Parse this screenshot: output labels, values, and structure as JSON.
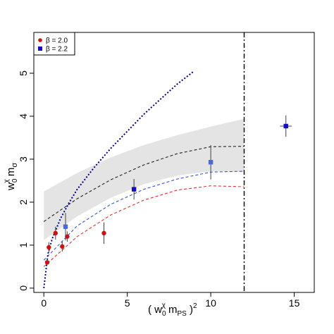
{
  "chart_data": {
    "type": "scatter",
    "xlim": [
      -0.6,
      16.2
    ],
    "ylim": [
      -0.1,
      5.95
    ],
    "x_ticks": [
      0,
      5,
      10,
      15
    ],
    "y_ticks": [
      0,
      1,
      2,
      3,
      4,
      5
    ],
    "grid": false,
    "legend_position": "top-left",
    "xlabel_parts": [
      "( w",
      "0",
      "χ",
      " m",
      "PS",
      " )",
      "2"
    ],
    "ylabel_parts": [
      "w",
      "0",
      "χ",
      " m",
      "σ"
    ],
    "series": [
      {
        "name": "β = 2.0",
        "marker": "circle",
        "color": "#cc1111",
        "points": [
          {
            "x": 0.2,
            "y": 0.6,
            "yerr": 0.05
          },
          {
            "x": 0.3,
            "y": 0.95,
            "yerr": 0.12
          },
          {
            "x": 0.7,
            "y": 1.28,
            "yerr": 0.15
          },
          {
            "x": 1.1,
            "y": 0.97,
            "yerr": 0.12
          },
          {
            "x": 1.4,
            "y": 1.2,
            "yerr": 0.12
          },
          {
            "x": 3.6,
            "y": 1.28,
            "yerr": 0.25
          }
        ]
      },
      {
        "name": "β = 2.2",
        "marker": "square",
        "color": "#1111bb",
        "points": [
          {
            "x": 1.3,
            "y": 1.43,
            "yerr": 0.32,
            "faded": true
          },
          {
            "x": 5.4,
            "y": 2.3,
            "yerr": 0.24
          },
          {
            "x": 10.0,
            "y": 2.93,
            "yerr": 0.4,
            "faded": true
          },
          {
            "x": 14.5,
            "y": 3.77,
            "yerr": 0.25,
            "xerr": 0.35
          }
        ]
      }
    ],
    "fit_band": {
      "color": "#e4e4e4",
      "x": [
        0,
        2,
        4,
        6,
        8,
        10,
        12
      ],
      "upper": [
        2.25,
        2.68,
        3.04,
        3.33,
        3.56,
        3.76,
        3.94
      ],
      "lower": [
        1.12,
        1.67,
        2.1,
        2.42,
        2.62,
        2.72,
        2.7
      ]
    },
    "fit_curves": [
      {
        "style": "dashed",
        "color": "#222222",
        "x": [
          0,
          2,
          4,
          6,
          8,
          10,
          12
        ],
        "y": [
          1.55,
          2.08,
          2.52,
          2.87,
          3.13,
          3.29,
          3.3
        ]
      },
      {
        "style": "dashed",
        "color": "#3355dd",
        "x": [
          0,
          2,
          4,
          6,
          8,
          10,
          12
        ],
        "y": [
          0.65,
          1.45,
          1.95,
          2.3,
          2.54,
          2.7,
          2.72
        ]
      },
      {
        "style": "dashed",
        "color": "#dd3333",
        "x": [
          0,
          2,
          4,
          6,
          8,
          10,
          12
        ],
        "y": [
          0.5,
          1.2,
          1.7,
          2.05,
          2.28,
          2.38,
          2.36
        ]
      },
      {
        "style": "dotted",
        "color": "#000088",
        "x": [
          0,
          0.25,
          0.5,
          1,
          1.5,
          2,
          3,
          4,
          5,
          6,
          7,
          8,
          9
        ],
        "y": [
          0.0,
          0.8,
          1.15,
          1.62,
          1.98,
          2.3,
          2.8,
          3.25,
          3.65,
          4.05,
          4.4,
          4.75,
          5.05
        ]
      }
    ],
    "vertical_line": {
      "x": 12,
      "style": "dash-dot",
      "color": "#000000"
    }
  }
}
